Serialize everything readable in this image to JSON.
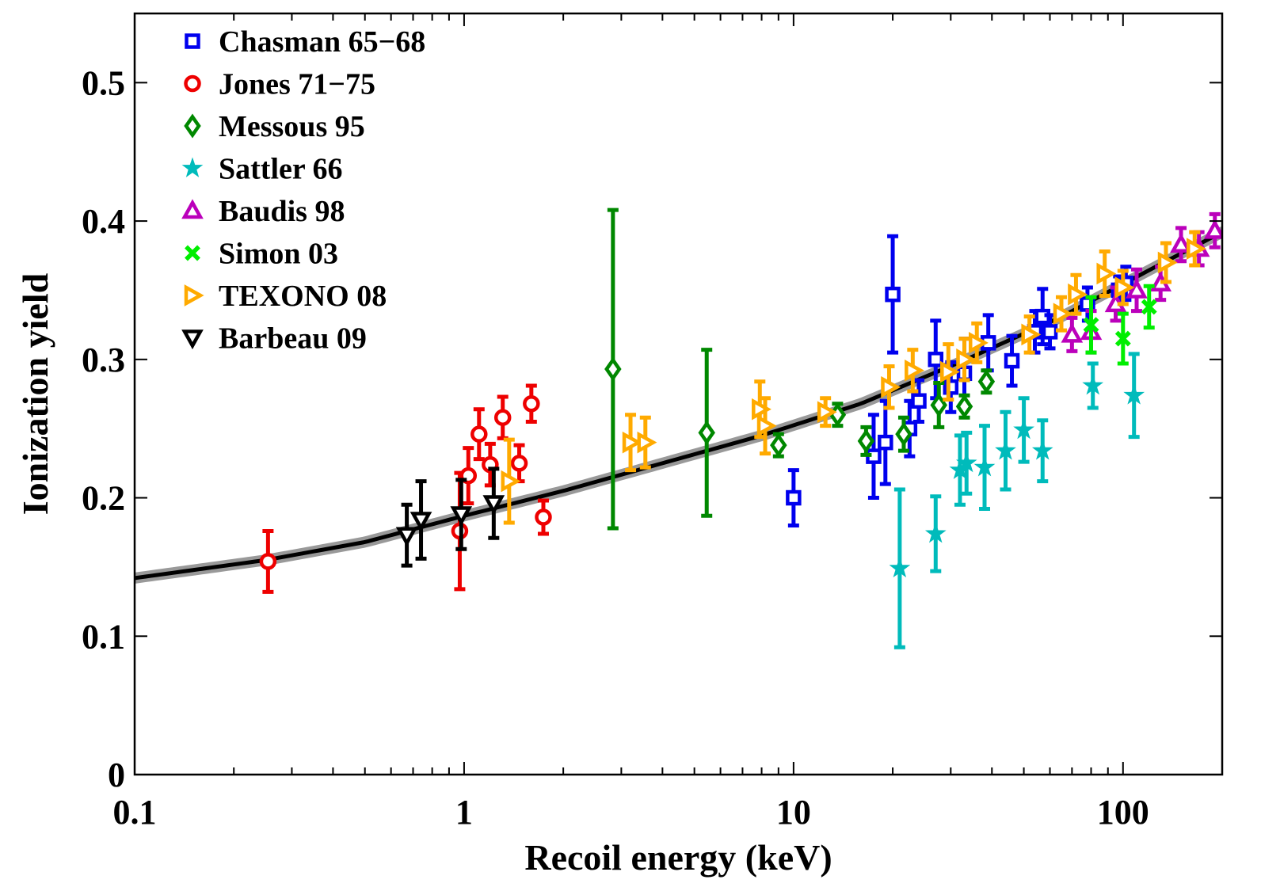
{
  "chart_data": {
    "type": "scatter",
    "xlabel": "Recoil energy (keV)",
    "ylabel": "Ionization yield",
    "x_scale": "log",
    "xlim": [
      0.1,
      200
    ],
    "ylim": [
      0,
      0.55
    ],
    "x_ticks": [
      {
        "value": 0.1,
        "label": "0.1"
      },
      {
        "value": 1,
        "label": "1"
      },
      {
        "value": 10,
        "label": "10"
      },
      {
        "value": 100,
        "label": "100"
      }
    ],
    "y_ticks": [
      {
        "value": 0,
        "label": "0"
      },
      {
        "value": 0.1,
        "label": "0.1"
      },
      {
        "value": 0.2,
        "label": "0.2"
      },
      {
        "value": 0.3,
        "label": "0.3"
      },
      {
        "value": 0.4,
        "label": "0.4"
      },
      {
        "value": 0.5,
        "label": "0.5"
      }
    ],
    "legend_position": "top-left",
    "fit_curve": {
      "color": "#000000",
      "band_color": "#999999",
      "points": [
        [
          0.1,
          0.142
        ],
        [
          0.25,
          0.155
        ],
        [
          0.5,
          0.168
        ],
        [
          1,
          0.187
        ],
        [
          2,
          0.205
        ],
        [
          4,
          0.225
        ],
        [
          8,
          0.245
        ],
        [
          16,
          0.268
        ],
        [
          32,
          0.298
        ],
        [
          64,
          0.33
        ],
        [
          128,
          0.368
        ],
        [
          200,
          0.392
        ]
      ]
    },
    "series": [
      {
        "name": "Chasman 65−68",
        "marker": "square",
        "color": "#0000ee",
        "points": [
          [
            10.0,
            0.2,
            0.02
          ],
          [
            17.5,
            0.23,
            0.03
          ],
          [
            19.0,
            0.24,
            0.03
          ],
          [
            20.0,
            0.347,
            0.042
          ],
          [
            22.5,
            0.25,
            0.02
          ],
          [
            24.0,
            0.27,
            0.015
          ],
          [
            27.0,
            0.3,
            0.028
          ],
          [
            30.0,
            0.28,
            0.018
          ],
          [
            33.0,
            0.29,
            0.025
          ],
          [
            39.0,
            0.312,
            0.02
          ],
          [
            46.0,
            0.299,
            0.018
          ],
          [
            54.0,
            0.32,
            0.015
          ],
          [
            57.0,
            0.331,
            0.02
          ],
          [
            60.0,
            0.32,
            0.012
          ],
          [
            78.0,
            0.34,
            0.012
          ],
          [
            97.0,
            0.35,
            0.01
          ],
          [
            102.0,
            0.355,
            0.012
          ]
        ]
      },
      {
        "name": "Jones 71−75",
        "marker": "circle",
        "color": "#ee0000",
        "points": [
          [
            0.254,
            0.154,
            0.022
          ],
          [
            0.97,
            0.176,
            0.042
          ],
          [
            1.03,
            0.216,
            0.02
          ],
          [
            1.11,
            0.246,
            0.018
          ],
          [
            1.2,
            0.224,
            0.015
          ],
          [
            1.31,
            0.258,
            0.015
          ],
          [
            1.47,
            0.225,
            0.013
          ],
          [
            1.6,
            0.268,
            0.013
          ],
          [
            1.74,
            0.186,
            0.012
          ]
        ]
      },
      {
        "name": "Messous 95",
        "marker": "diamond",
        "color": "#008800",
        "points": [
          [
            2.83,
            0.293,
            0.115
          ],
          [
            5.45,
            0.247,
            0.06
          ],
          [
            9.0,
            0.238,
            0.008
          ],
          [
            13.6,
            0.26,
            0.008
          ],
          [
            16.6,
            0.241,
            0.01
          ],
          [
            21.6,
            0.246,
            0.012
          ],
          [
            27.6,
            0.267,
            0.016
          ],
          [
            33.0,
            0.266,
            0.008
          ],
          [
            38.5,
            0.284,
            0.008
          ]
        ]
      },
      {
        "name": "Sattler 66",
        "marker": "star",
        "color": "#00bbbb",
        "points": [
          [
            21.0,
            0.149,
            0.057
          ],
          [
            27.0,
            0.174,
            0.027
          ],
          [
            32.0,
            0.22,
            0.025
          ],
          [
            33.5,
            0.225,
            0.022
          ],
          [
            38.0,
            0.222,
            0.03
          ],
          [
            44.0,
            0.234,
            0.028
          ],
          [
            50.0,
            0.249,
            0.023
          ],
          [
            57.0,
            0.234,
            0.022
          ],
          [
            81.0,
            0.281,
            0.016
          ],
          [
            108.0,
            0.274,
            0.03
          ]
        ]
      },
      {
        "name": "Baudis 98",
        "marker": "triangle",
        "color": "#bb00bb",
        "points": [
          [
            70.0,
            0.318,
            0.012
          ],
          [
            80.0,
            0.32,
            0.015
          ],
          [
            95.0,
            0.34,
            0.012
          ],
          [
            110.0,
            0.35,
            0.015
          ],
          [
            130.0,
            0.355,
            0.012
          ],
          [
            150.0,
            0.383,
            0.012
          ],
          [
            170.0,
            0.38,
            0.012
          ],
          [
            190.0,
            0.393,
            0.012
          ]
        ]
      },
      {
        "name": "Simon 03",
        "marker": "x",
        "color": "#00ee00",
        "points": [
          [
            80.0,
            0.325,
            0.02
          ],
          [
            100.0,
            0.315,
            0.018
          ],
          [
            120.0,
            0.338,
            0.015
          ]
        ]
      },
      {
        "name": "TEXONO 08",
        "marker": "triangle-right",
        "color": "#ffaa00",
        "points": [
          [
            1.37,
            0.212,
            0.03
          ],
          [
            3.2,
            0.24,
            0.02
          ],
          [
            3.55,
            0.24,
            0.018
          ],
          [
            7.9,
            0.264,
            0.02
          ],
          [
            8.2,
            0.252,
            0.02
          ],
          [
            12.5,
            0.262,
            0.01
          ],
          [
            19.5,
            0.28,
            0.015
          ],
          [
            23.0,
            0.292,
            0.015
          ],
          [
            29.5,
            0.291,
            0.02
          ],
          [
            33.0,
            0.3,
            0.015
          ],
          [
            36.0,
            0.312,
            0.014
          ],
          [
            52.0,
            0.318,
            0.013
          ],
          [
            65.0,
            0.333,
            0.012
          ],
          [
            72.0,
            0.347,
            0.014
          ],
          [
            88.0,
            0.362,
            0.016
          ],
          [
            100.0,
            0.352,
            0.012
          ],
          [
            135.0,
            0.37,
            0.014
          ],
          [
            165.0,
            0.38,
            0.012
          ]
        ]
      },
      {
        "name": "Barbeau 09",
        "marker": "triangle-down",
        "color": "#000000",
        "points": [
          [
            0.67,
            0.173,
            0.022
          ],
          [
            0.74,
            0.184,
            0.028
          ],
          [
            0.98,
            0.188,
            0.025
          ],
          [
            1.23,
            0.196,
            0.025
          ]
        ]
      }
    ]
  }
}
